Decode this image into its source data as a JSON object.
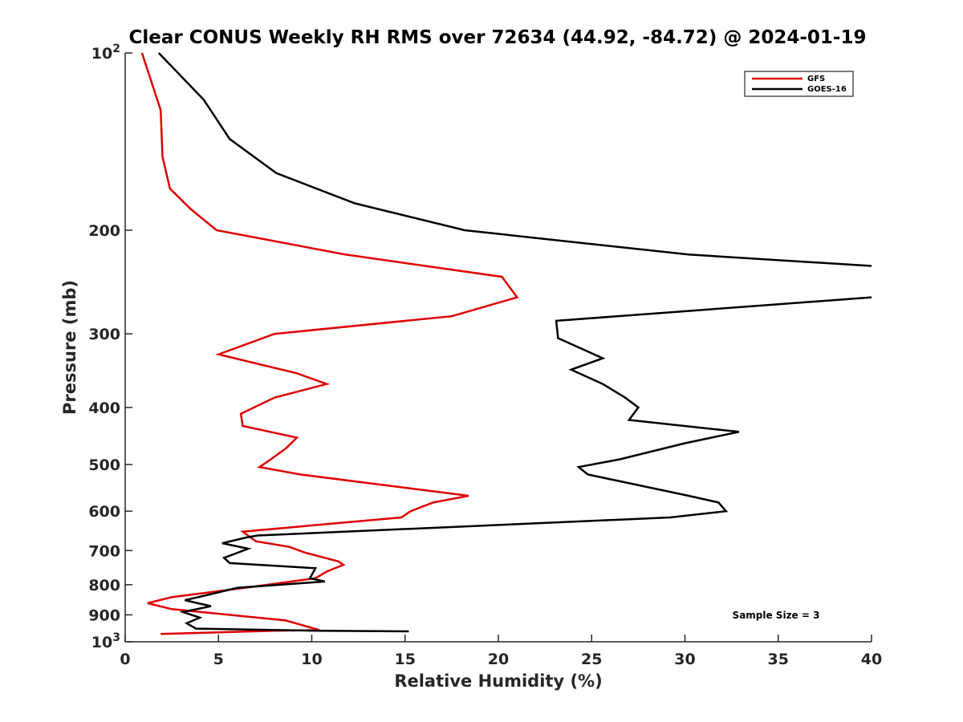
{
  "chart_data": {
    "type": "line",
    "title": "Clear CONUS Weekly RH RMS over 72634 (44.92, -84.72) @ 2024-01-19",
    "xlabel": "Relative Humidity (%)",
    "ylabel": "Pressure (mb)",
    "xlim": [
      0,
      40
    ],
    "ylim": [
      100,
      1000
    ],
    "yscale": "log",
    "yreversed": true,
    "grid": false,
    "x_ticks": [
      0,
      5,
      10,
      15,
      20,
      25,
      30,
      35,
      40
    ],
    "x_tick_labels": [
      "0",
      "5",
      "10",
      "15",
      "20",
      "25",
      "30",
      "35",
      "40"
    ],
    "y_ticks": [
      {
        "value": 100,
        "base": "10",
        "exp": "2"
      },
      {
        "value": 200,
        "label": "200"
      },
      {
        "value": 300,
        "label": "300"
      },
      {
        "value": 400,
        "label": "400"
      },
      {
        "value": 500,
        "label": "500"
      },
      {
        "value": 600,
        "label": "600"
      },
      {
        "value": 700,
        "label": "700"
      },
      {
        "value": 800,
        "label": "800"
      },
      {
        "value": 900,
        "label": "900"
      },
      {
        "value": 1000,
        "base": "10",
        "exp": "3"
      }
    ],
    "legend_position": "top-right",
    "annotation": "Sample Size = 3",
    "series": [
      {
        "name": "GFS",
        "color": "#e00000",
        "points": [
          [
            0.9,
            100
          ],
          [
            1.9,
            125
          ],
          [
            2.0,
            150
          ],
          [
            2.4,
            170
          ],
          [
            3.5,
            184
          ],
          [
            4.9,
            200
          ],
          [
            11.8,
            220
          ],
          [
            20.2,
            240
          ],
          [
            21.0,
            260
          ],
          [
            17.5,
            280
          ],
          [
            8.0,
            300
          ],
          [
            5.0,
            325
          ],
          [
            9.2,
            350
          ],
          [
            10.8,
            365
          ],
          [
            8.0,
            385
          ],
          [
            6.2,
            410
          ],
          [
            6.3,
            430
          ],
          [
            9.2,
            450
          ],
          [
            8.6,
            470
          ],
          [
            7.8,
            490
          ],
          [
            7.2,
            505
          ],
          [
            9.4,
            520
          ],
          [
            18.4,
            565
          ],
          [
            16.5,
            580
          ],
          [
            15.3,
            600
          ],
          [
            14.8,
            615
          ],
          [
            6.3,
            650
          ],
          [
            7.0,
            675
          ],
          [
            8.8,
            690
          ],
          [
            9.6,
            705
          ],
          [
            11.4,
            730
          ],
          [
            11.7,
            740
          ],
          [
            10.8,
            760
          ],
          [
            10.2,
            780
          ],
          [
            7.0,
            805
          ],
          [
            2.5,
            840
          ],
          [
            1.2,
            860
          ],
          [
            2.5,
            880
          ],
          [
            8.6,
            920
          ],
          [
            10.4,
            955
          ],
          [
            8.0,
            958
          ],
          [
            1.9,
            970
          ]
        ]
      },
      {
        "name": "GOES-16",
        "color": "#000000",
        "points": [
          [
            1.8,
            100
          ],
          [
            4.2,
            120
          ],
          [
            5.6,
            140
          ],
          [
            8.1,
            160
          ],
          [
            12.3,
            180
          ],
          [
            18.2,
            200
          ],
          [
            30.2,
            220
          ],
          [
            40.0,
            230
          ],
          [
            null,
            null
          ],
          [
            40.0,
            260
          ],
          [
            23.1,
            285
          ],
          [
            23.2,
            305
          ],
          [
            25.6,
            330
          ],
          [
            23.9,
            345
          ],
          [
            25.6,
            365
          ],
          [
            26.8,
            385
          ],
          [
            27.5,
            400
          ],
          [
            27.0,
            420
          ],
          [
            32.9,
            440
          ],
          [
            30.0,
            460
          ],
          [
            26.5,
            490
          ],
          [
            24.3,
            505
          ],
          [
            24.8,
            520
          ],
          [
            30.2,
            565
          ],
          [
            31.8,
            580
          ],
          [
            32.2,
            600
          ],
          [
            29.2,
            615
          ],
          [
            7.1,
            660
          ],
          [
            6.5,
            665
          ],
          [
            5.2,
            680
          ],
          [
            6.6,
            695
          ],
          [
            5.3,
            720
          ],
          [
            5.6,
            735
          ],
          [
            10.2,
            750
          ],
          [
            9.9,
            780
          ],
          [
            10.7,
            790
          ],
          [
            6.0,
            810
          ],
          [
            4.6,
            830
          ],
          [
            3.2,
            850
          ],
          [
            4.6,
            870
          ],
          [
            3.1,
            890
          ],
          [
            4.0,
            910
          ],
          [
            3.3,
            930
          ],
          [
            3.8,
            950
          ],
          [
            10.4,
            958
          ],
          [
            15.2,
            960
          ]
        ]
      }
    ]
  }
}
